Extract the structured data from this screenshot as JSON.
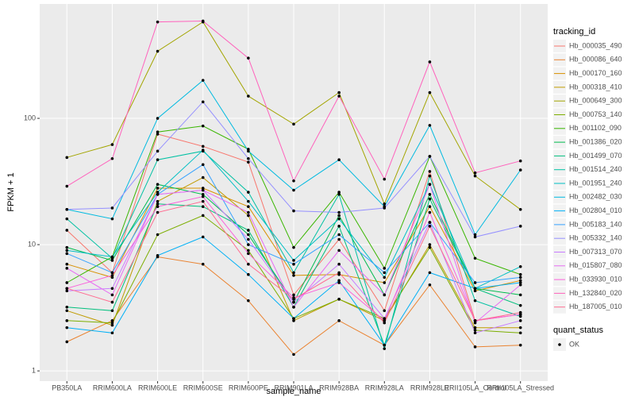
{
  "chart_data": {
    "type": "line",
    "x_label": "sample_name",
    "y_label": "FPKM + 1",
    "categories": [
      "PB350LA",
      "RRIM600LA",
      "RRIM600LE",
      "RRIM600SE",
      "RRIM600PE",
      "RRIM901LA",
      "RRIM928BA",
      "RRIM928LA",
      "RRIM928LE",
      "RRII105LA_Control",
      "RRII105LA_Stressed"
    ],
    "log_y": true,
    "grid": true,
    "legend_position": "right",
    "legend_title": "tracking_id",
    "point_legend": {
      "title": "quant_status",
      "labels": [
        "OK"
      ],
      "color": "#000000"
    },
    "ylim": [
      0.83,
      805
    ],
    "yticks": [
      1,
      10,
      100
    ],
    "series": [
      {
        "name": "Hb_000035_490",
        "color": "#F8766D",
        "values": [
          13,
          6,
          75,
          60,
          45,
          4,
          11,
          3,
          38,
          2.5,
          2.8
        ]
      },
      {
        "name": "Hb_000086_640",
        "color": "#EA8331",
        "values": [
          1.7,
          2.5,
          8,
          7,
          3.6,
          1.35,
          2.5,
          1.6,
          4.8,
          1.55,
          1.6
        ]
      },
      {
        "name": "Hb_000170_160",
        "color": "#D89000",
        "values": [
          7,
          5.5,
          28,
          28,
          20,
          5.7,
          5.8,
          5,
          20,
          4.3,
          5.2
        ]
      },
      {
        "name": "Hb_000318_410",
        "color": "#C09B00",
        "values": [
          3,
          2.3,
          22,
          34,
          17,
          2.5,
          3.7,
          2.5,
          10,
          2.2,
          2.2
        ]
      },
      {
        "name": "Hb_000649_300",
        "color": "#A3A500",
        "values": [
          49,
          62,
          340,
          580,
          150,
          90,
          160,
          21,
          160,
          35,
          19
        ]
      },
      {
        "name": "Hb_000753_140",
        "color": "#7CAE00",
        "values": [
          2.5,
          2.4,
          12,
          17,
          9,
          2.6,
          3.7,
          2.6,
          9.5,
          2.1,
          2
        ]
      },
      {
        "name": "Hb_001102_090",
        "color": "#39B600",
        "values": [
          5,
          8,
          78,
          87,
          57,
          9.5,
          26,
          6.5,
          50,
          7.8,
          5.8
        ]
      },
      {
        "name": "Hb_001386_020",
        "color": "#00BB4E",
        "values": [
          9.5,
          7.5,
          30,
          25,
          12,
          3.5,
          17,
          4,
          25,
          4.5,
          4
        ]
      },
      {
        "name": "Hb_001499_070",
        "color": "#00BF7D",
        "values": [
          3.2,
          3,
          21,
          20,
          13,
          3.2,
          14,
          1.6,
          23,
          4.5,
          3.3
        ]
      },
      {
        "name": "Hb_001514_240",
        "color": "#00C1A3",
        "values": [
          16,
          7.8,
          47,
          55,
          26,
          6,
          25,
          1.5,
          35,
          3.6,
          2.7
        ]
      },
      {
        "name": "Hb_001951_240",
        "color": "#00BFC4",
        "values": [
          9,
          8,
          26,
          56,
          22,
          7.5,
          16,
          5.5,
          30,
          4.5,
          6.7
        ]
      },
      {
        "name": "Hb_002482_030",
        "color": "#00BAE0",
        "values": [
          19,
          16,
          100,
          200,
          55,
          27,
          47,
          20,
          88,
          12,
          39
        ]
      },
      {
        "name": "Hb_002804_010",
        "color": "#00B0F6",
        "values": [
          2.2,
          2,
          8.2,
          11.5,
          5.8,
          2.6,
          5.2,
          1.6,
          6,
          4.5,
          5
        ]
      },
      {
        "name": "Hb_005183_140",
        "color": "#35A2FF",
        "values": [
          8.5,
          6,
          25,
          43,
          10,
          7,
          12,
          6,
          15,
          5,
          5.5
        ]
      },
      {
        "name": "Hb_005332_140",
        "color": "#9590FF",
        "values": [
          19,
          19.5,
          55,
          135,
          48,
          18.5,
          18,
          19.5,
          50,
          11.5,
          14
        ]
      },
      {
        "name": "Hb_007313_070",
        "color": "#C77CFF",
        "values": [
          4.3,
          4.5,
          25,
          27,
          11,
          3.5,
          7,
          2.6,
          15,
          2,
          2.5
        ]
      },
      {
        "name": "Hb_015807_080",
        "color": "#E76BF3",
        "values": [
          6.5,
          4,
          25,
          27,
          18,
          3.2,
          9,
          4,
          30,
          2.4,
          4.8
        ]
      },
      {
        "name": "Hb_033930_010",
        "color": "#FA62DB",
        "values": [
          4.5,
          5.7,
          20,
          24,
          8.5,
          3.8,
          5,
          2.5,
          18,
          2.5,
          2.8
        ]
      },
      {
        "name": "Hb_132840_020",
        "color": "#FF62BC",
        "values": [
          29,
          48,
          580,
          590,
          300,
          32,
          150,
          33,
          280,
          37,
          46
        ]
      },
      {
        "name": "Hb_187005_010",
        "color": "#FF6C91",
        "values": [
          4.5,
          3.5,
          18,
          22,
          7,
          3.7,
          6,
          2.4,
          14,
          2.5,
          2.9
        ]
      }
    ]
  }
}
